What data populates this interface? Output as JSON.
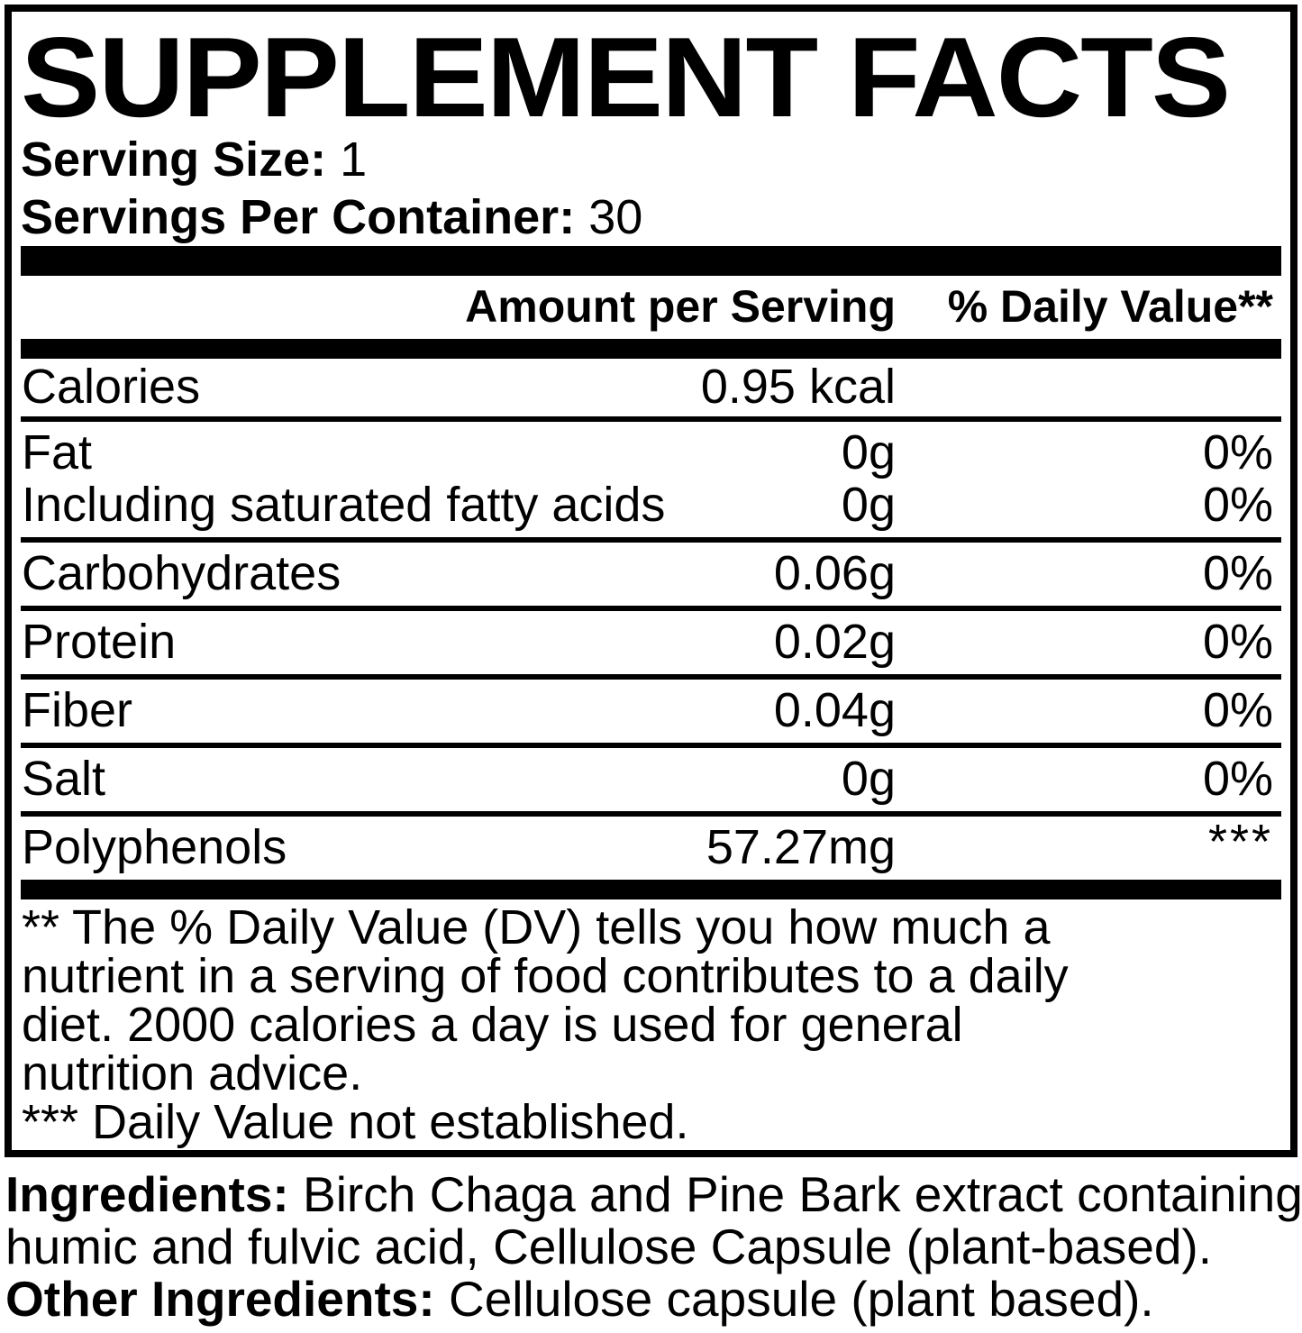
{
  "title": "SUPPLEMENT FACTS",
  "serving": {
    "size_label": "Serving Size:",
    "size_value": "1",
    "container_label": "Servings Per Container:",
    "container_value": "30"
  },
  "table": {
    "header": {
      "amount": "Amount per Serving",
      "dv": "% Daily Value**"
    },
    "rows": [
      {
        "name": "Calories",
        "amount": "0.95 kcal",
        "dv": ""
      },
      {
        "name": "Fat",
        "amount": "0g",
        "dv": "0%"
      },
      {
        "name": "Including saturated fatty acids",
        "amount": "0g",
        "dv": "0%"
      },
      {
        "name": "Carbohydrates",
        "amount": "0.06g",
        "dv": "0%"
      },
      {
        "name": "Protein",
        "amount": "0.02g",
        "dv": "0%"
      },
      {
        "name": "Fiber",
        "amount": "0.04g",
        "dv": "0%"
      },
      {
        "name": "Salt",
        "amount": "0g",
        "dv": "0%"
      },
      {
        "name": "Polyphenols",
        "amount": "57.27mg",
        "dv": "***"
      }
    ]
  },
  "footnotes": {
    "dv_lines": [
      "** The % Daily Value (DV) tells you how much a",
      "nutrient in a serving of food contributes to a daily",
      "diet. 2000 calories a day is used for general",
      "nutrition advice."
    ],
    "not_established": "*** Daily Value not established."
  },
  "ingredients": {
    "label": "Ingredients:",
    "line1_rest": "Birch Chaga and Pine Bark extract containing",
    "line2": "humic and fulvic acid, Cellulose Capsule (plant-based).",
    "other_label": "Other Ingredients:",
    "other_rest": "Cellulose capsule (plant based)."
  },
  "colors": {
    "ink": "#000000",
    "paper": "#ffffff"
  }
}
